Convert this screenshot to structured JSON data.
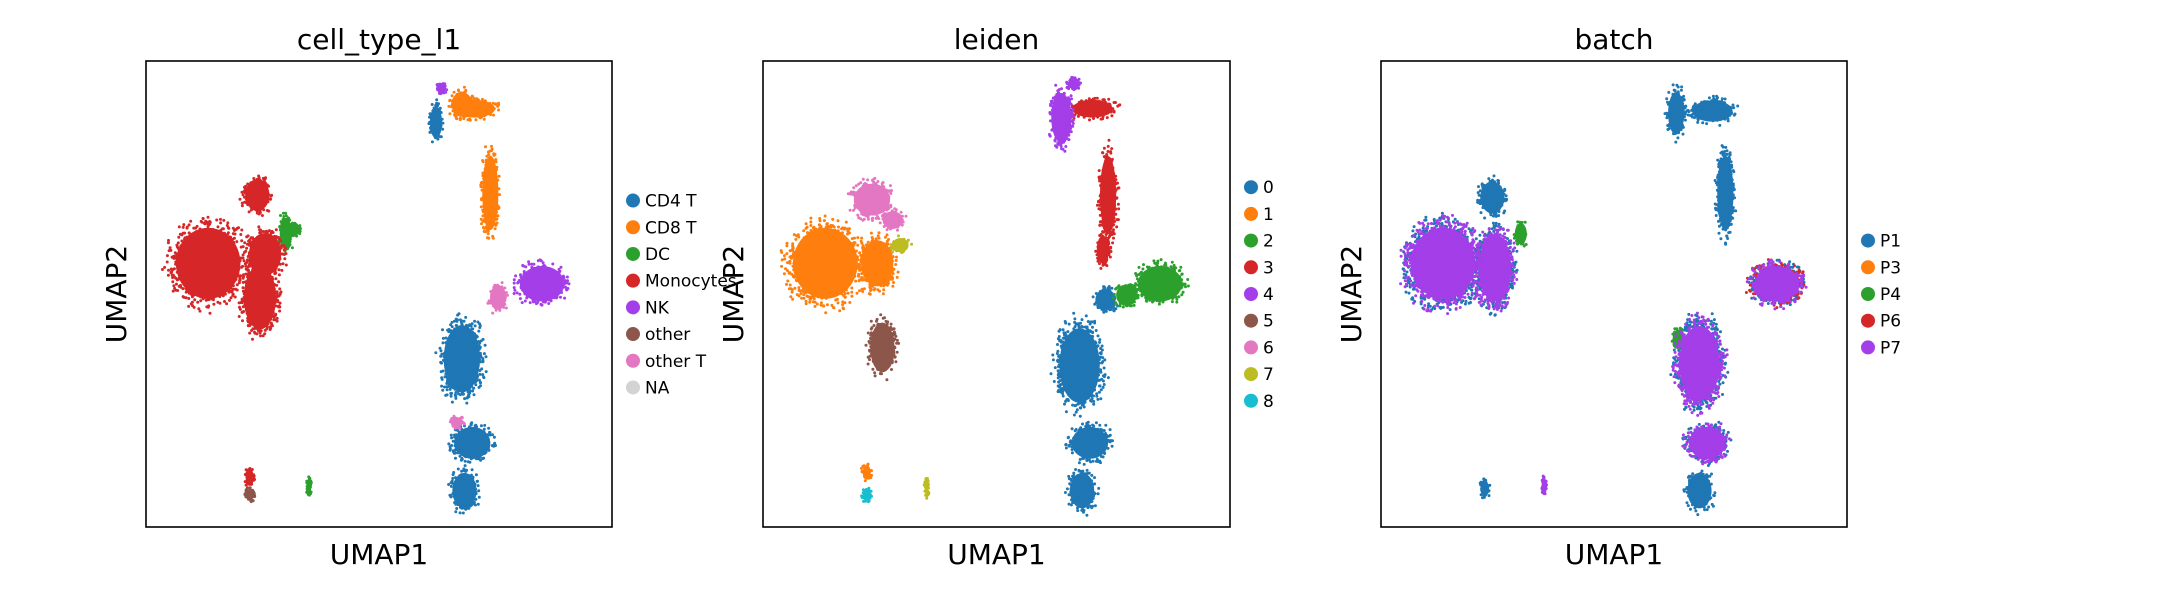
{
  "chart_data": [
    {
      "type": "scatter",
      "title": "cell_type_l1",
      "xlabel": "UMAP1",
      "ylabel": "UMAP2",
      "grid": false,
      "legend": "right",
      "series": [
        {
          "name": "CD4 T",
          "color": "#1f77b4",
          "regions": [
            [
              6.2,
              -3.6,
              0.9,
              1.9
            ],
            [
              6.6,
              -7.3,
              0.9,
              0.9
            ],
            [
              6.3,
              -9.4,
              0.6,
              1.0
            ],
            [
              5.2,
              6.8,
              0.3,
              0.9
            ]
          ]
        },
        {
          "name": "CD8 T",
          "color": "#ff7f0e",
          "regions": [
            [
              6.7,
              7.4,
              1.0,
              0.5
            ],
            [
              7.3,
              3.7,
              0.4,
              2.1
            ],
            [
              6.2,
              7.6,
              0.5,
              0.7
            ]
          ]
        },
        {
          "name": "DC",
          "color": "#2ca02c",
          "regions": [
            [
              -0.6,
              1.9,
              0.3,
              0.9
            ],
            [
              0.3,
              -9.2,
              0.1,
              0.5
            ],
            [
              -0.3,
              2.1,
              0.3,
              0.4
            ]
          ]
        },
        {
          "name": "Monocytes",
          "color": "#d62728",
          "regions": [
            [
              -3.6,
              0.6,
              1.6,
              2.0
            ],
            [
              -1.4,
              1.0,
              0.8,
              1.2
            ],
            [
              -1.6,
              -0.9,
              0.8,
              1.8
            ],
            [
              -1.7,
              3.6,
              0.6,
              0.9
            ],
            [
              -2.0,
              -8.8,
              0.2,
              0.5
            ]
          ]
        },
        {
          "name": "NK",
          "color": "#a33ee8",
          "regions": [
            [
              9.3,
              -0.3,
              1.1,
              1.0
            ],
            [
              5.4,
              8.3,
              0.2,
              0.3
            ]
          ]
        },
        {
          "name": "other",
          "color": "#8c564b",
          "regions": [
            [
              -2.0,
              -9.6,
              0.2,
              0.3
            ]
          ]
        },
        {
          "name": "other T",
          "color": "#e377c2",
          "regions": [
            [
              7.6,
              -0.9,
              0.4,
              0.7
            ],
            [
              6.0,
              -6.4,
              0.3,
              0.3
            ]
          ]
        },
        {
          "name": "NA",
          "color": "#d3d3d3",
          "regions": []
        }
      ]
    },
    {
      "type": "scatter",
      "title": "leiden",
      "xlabel": "UMAP1",
      "ylabel": "UMAP2",
      "grid": false,
      "legend": "right",
      "series": [
        {
          "name": "0",
          "color": "#1f77b4",
          "regions": [
            [
              6.2,
              -3.9,
              1.0,
              2.1
            ],
            [
              6.6,
              -7.3,
              0.9,
              0.9
            ],
            [
              6.3,
              -9.4,
              0.6,
              1.0
            ],
            [
              7.2,
              -1.0,
              0.5,
              0.6
            ]
          ]
        },
        {
          "name": "1",
          "color": "#ff7f0e",
          "regions": [
            [
              -3.6,
              0.6,
              1.6,
              2.0
            ],
            [
              -1.6,
              0.6,
              0.8,
              1.3
            ],
            [
              -2.0,
              -8.6,
              0.2,
              0.4
            ]
          ]
        },
        {
          "name": "2",
          "color": "#2ca02c",
          "regions": [
            [
              9.3,
              -0.3,
              1.1,
              1.0
            ],
            [
              8.0,
              -0.8,
              0.5,
              0.6
            ]
          ]
        },
        {
          "name": "3",
          "color": "#d62728",
          "regions": [
            [
              6.7,
              7.4,
              1.0,
              0.5
            ],
            [
              7.3,
              3.6,
              0.4,
              2.2
            ],
            [
              7.1,
              1.2,
              0.3,
              0.8
            ]
          ]
        },
        {
          "name": "4",
          "color": "#a33ee8",
          "regions": [
            [
              5.5,
              7.0,
              0.5,
              1.4
            ],
            [
              6.0,
              8.5,
              0.3,
              0.3
            ]
          ]
        },
        {
          "name": "5",
          "color": "#8c564b",
          "regions": [
            [
              -1.4,
              -3.1,
              0.6,
              1.4
            ]
          ]
        },
        {
          "name": "6",
          "color": "#e377c2",
          "regions": [
            [
              -1.8,
              3.4,
              0.9,
              0.9
            ],
            [
              -1.0,
              2.5,
              0.5,
              0.5
            ]
          ]
        },
        {
          "name": "7",
          "color": "#bcbd22",
          "regions": [
            [
              -0.7,
              1.4,
              0.4,
              0.4
            ],
            [
              0.3,
              -9.2,
              0.1,
              0.5
            ]
          ]
        },
        {
          "name": "8",
          "color": "#17becf",
          "regions": [
            [
              -2.0,
              -9.6,
              0.2,
              0.3
            ]
          ]
        }
      ]
    },
    {
      "type": "scatter",
      "title": "batch",
      "xlabel": "UMAP1",
      "ylabel": "UMAP2",
      "grid": false,
      "legend": "right",
      "series": [
        {
          "name": "P1",
          "color": "#1f77b4",
          "regions": [
            [
              -3.6,
              0.6,
              1.6,
              2.0
            ],
            [
              -1.6,
              0.4,
              0.8,
              1.9
            ],
            [
              -1.7,
              3.5,
              0.6,
              0.9
            ],
            [
              6.3,
              -3.8,
              1.0,
              2.1
            ],
            [
              6.6,
              -7.3,
              0.9,
              0.9
            ],
            [
              6.3,
              -9.4,
              0.6,
              1.0
            ],
            [
              9.3,
              -0.3,
              1.1,
              1.0
            ],
            [
              6.8,
              7.3,
              1.0,
              0.6
            ],
            [
              7.3,
              3.7,
              0.4,
              2.1
            ],
            [
              5.4,
              7.2,
              0.4,
              1.2
            ],
            [
              -2.0,
              -9.3,
              0.2,
              0.5
            ]
          ]
        },
        {
          "name": "P3",
          "color": "#ff7f0e",
          "regions": []
        },
        {
          "name": "P4",
          "color": "#2ca02c",
          "regions": [
            [
              -0.6,
              1.9,
              0.3,
              0.6
            ],
            [
              5.5,
              -2.7,
              0.3,
              0.5
            ]
          ]
        },
        {
          "name": "P6",
          "color": "#d62728",
          "regions": [
            [
              9.3,
              -0.3,
              1.1,
              1.0
            ]
          ]
        },
        {
          "name": "P7",
          "color": "#a33ee8",
          "regions": [
            [
              -3.6,
              0.6,
              1.6,
              2.0
            ],
            [
              -1.6,
              0.4,
              0.8,
              1.9
            ],
            [
              6.3,
              -3.8,
              1.0,
              2.1
            ],
            [
              6.6,
              -7.3,
              0.9,
              0.9
            ],
            [
              9.3,
              -0.3,
              1.1,
              1.0
            ],
            [
              0.3,
              -9.2,
              0.1,
              0.5
            ]
          ]
        }
      ]
    }
  ]
}
